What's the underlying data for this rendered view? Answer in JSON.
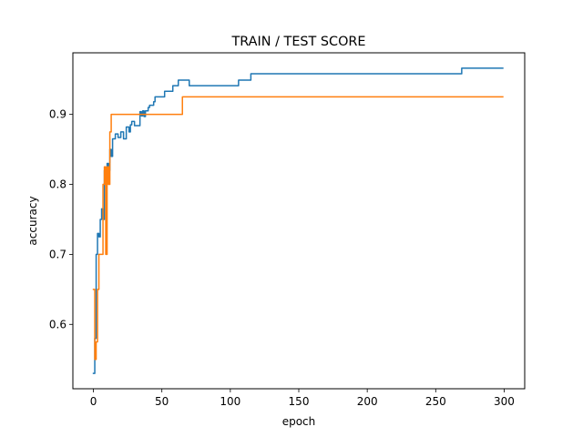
{
  "chart_data": {
    "type": "line",
    "title": "TRAIN / TEST SCORE",
    "xlabel": "epoch",
    "ylabel": "accuracy",
    "xlim": [
      -15,
      315
    ],
    "ylim": [
      0.508,
      0.988
    ],
    "xticks": [
      0,
      50,
      100,
      150,
      200,
      250,
      300
    ],
    "yticks": [
      0.6,
      0.7,
      0.8,
      0.9
    ],
    "ytick_labels": [
      "0.6",
      "0.7",
      "0.8",
      "0.9"
    ],
    "grid": false,
    "series": [
      {
        "color": "#1f77b4",
        "x": [
          0,
          1,
          1,
          2,
          2,
          3,
          3,
          4,
          4,
          5,
          5,
          6,
          6,
          7,
          7,
          8,
          8,
          9,
          9,
          10,
          10,
          11,
          11,
          12,
          12,
          13,
          13,
          14,
          14,
          16,
          16,
          18,
          18,
          20,
          20,
          22,
          22,
          24,
          24,
          26,
          26,
          27,
          27,
          28,
          28,
          30,
          30,
          34,
          34,
          35,
          35,
          36,
          36,
          37,
          37,
          38,
          38,
          40,
          40,
          41,
          41,
          44,
          44,
          45,
          45,
          52,
          52,
          58,
          58,
          62,
          62,
          70,
          70,
          106,
          106,
          115,
          115,
          269,
          269,
          299
        ],
        "y": [
          0.53,
          0.53,
          0.58,
          0.58,
          0.7,
          0.7,
          0.73,
          0.73,
          0.725,
          0.725,
          0.75,
          0.75,
          0.765,
          0.765,
          0.75,
          0.75,
          0.82,
          0.82,
          0.81,
          0.81,
          0.83,
          0.83,
          0.82,
          0.82,
          0.85,
          0.85,
          0.84,
          0.84,
          0.865,
          0.865,
          0.872,
          0.872,
          0.867,
          0.867,
          0.875,
          0.875,
          0.865,
          0.865,
          0.882,
          0.882,
          0.875,
          0.875,
          0.885,
          0.885,
          0.89,
          0.89,
          0.884,
          0.884,
          0.904,
          0.904,
          0.898,
          0.898,
          0.905,
          0.905,
          0.897,
          0.897,
          0.905,
          0.905,
          0.91,
          0.91,
          0.913,
          0.913,
          0.918,
          0.918,
          0.925,
          0.925,
          0.933,
          0.933,
          0.941,
          0.941,
          0.949,
          0.949,
          0.941,
          0.941,
          0.949,
          0.949,
          0.958,
          0.958,
          0.966,
          0.966
        ]
      },
      {
        "color": "#ff7f0e",
        "x": [
          0,
          1,
          1,
          2,
          2,
          3,
          3,
          4,
          4,
          5,
          5,
          7,
          7,
          8,
          8,
          9,
          9,
          10,
          10,
          11,
          11,
          12,
          12,
          13,
          13,
          65,
          65,
          299
        ],
        "y": [
          0.65,
          0.65,
          0.55,
          0.55,
          0.575,
          0.575,
          0.65,
          0.65,
          0.7,
          0.7,
          0.7,
          0.7,
          0.8,
          0.8,
          0.825,
          0.825,
          0.7,
          0.7,
          0.825,
          0.825,
          0.8,
          0.8,
          0.875,
          0.875,
          0.9,
          0.9,
          0.925,
          0.925
        ]
      }
    ]
  }
}
